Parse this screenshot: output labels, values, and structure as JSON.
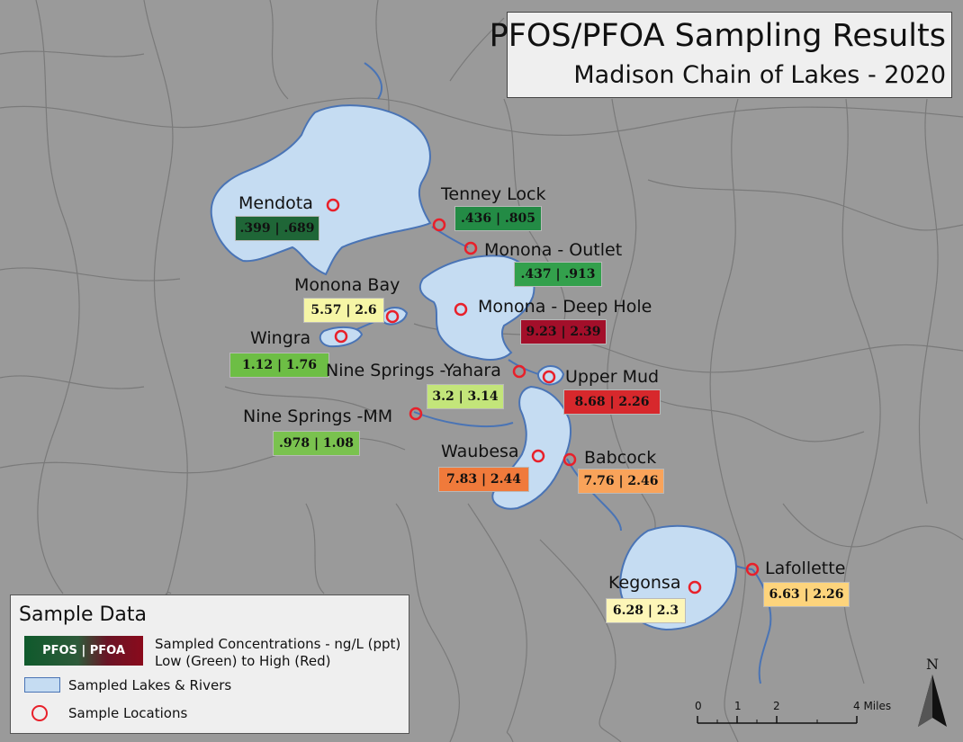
{
  "title": {
    "main": "PFOS/PFOA Sampling Results",
    "sub": "Madison Chain of Lakes - 2020"
  },
  "sites": [
    {
      "name": "Mendota",
      "value": ".399 | .689",
      "color": "#1f6637"
    },
    {
      "name": "Tenney Lock",
      "value": ".436 | .805",
      "color": "#238b45"
    },
    {
      "name": "Monona - Outlet",
      "value": ".437 | .913",
      "color": "#33a04c"
    },
    {
      "name": "Monona Bay",
      "value": "5.57 | 2.6",
      "color": "#f6f6a6"
    },
    {
      "name": "Monona - Deep Hole",
      "value": "9.23 | 2.39",
      "color": "#a30f2a"
    },
    {
      "name": "Wingra",
      "value": "1.12 | 1.76",
      "color": "#6dbe45"
    },
    {
      "name": "Nine Springs -Yahara",
      "value": "3.2 | 3.14",
      "color": "#c3e57a"
    },
    {
      "name": "Upper Mud",
      "value": "8.68 | 2.26",
      "color": "#d7282c"
    },
    {
      "name": "Nine Springs -MM",
      "value": ".978 | 1.08",
      "color": "#7ac24f"
    },
    {
      "name": "Waubesa",
      "value": "7.83 | 2.44",
      "color": "#f07a3b"
    },
    {
      "name": "Babcock",
      "value": "7.76 | 2.46",
      "color": "#f9a35a"
    },
    {
      "name": "Kegonsa",
      "value": "6.28 | 2.3",
      "color": "#fdf6b8"
    },
    {
      "name": "Lafollette",
      "value": "6.63 | 2.26",
      "color": "#fdd47c"
    }
  ],
  "legend": {
    "title": "Sample Data",
    "swatch_label": "PFOS | PFOA",
    "concentration_line1": "Sampled Concentrations - ng/L (ppt)",
    "concentration_line2": "Low (Green) to High (Red)",
    "lakes_label": "Sampled Lakes & Rivers",
    "locations_label": "Sample Locations"
  },
  "scale": {
    "ticks": [
      "0",
      "1",
      "2",
      "4 Miles"
    ]
  },
  "north_label": "N",
  "colors": {
    "background": "#9a9a9a",
    "water": "#c5dcf2",
    "water_outline": "#4a74b5",
    "marker": "#e8202a",
    "roads": "#7e7e7e"
  }
}
